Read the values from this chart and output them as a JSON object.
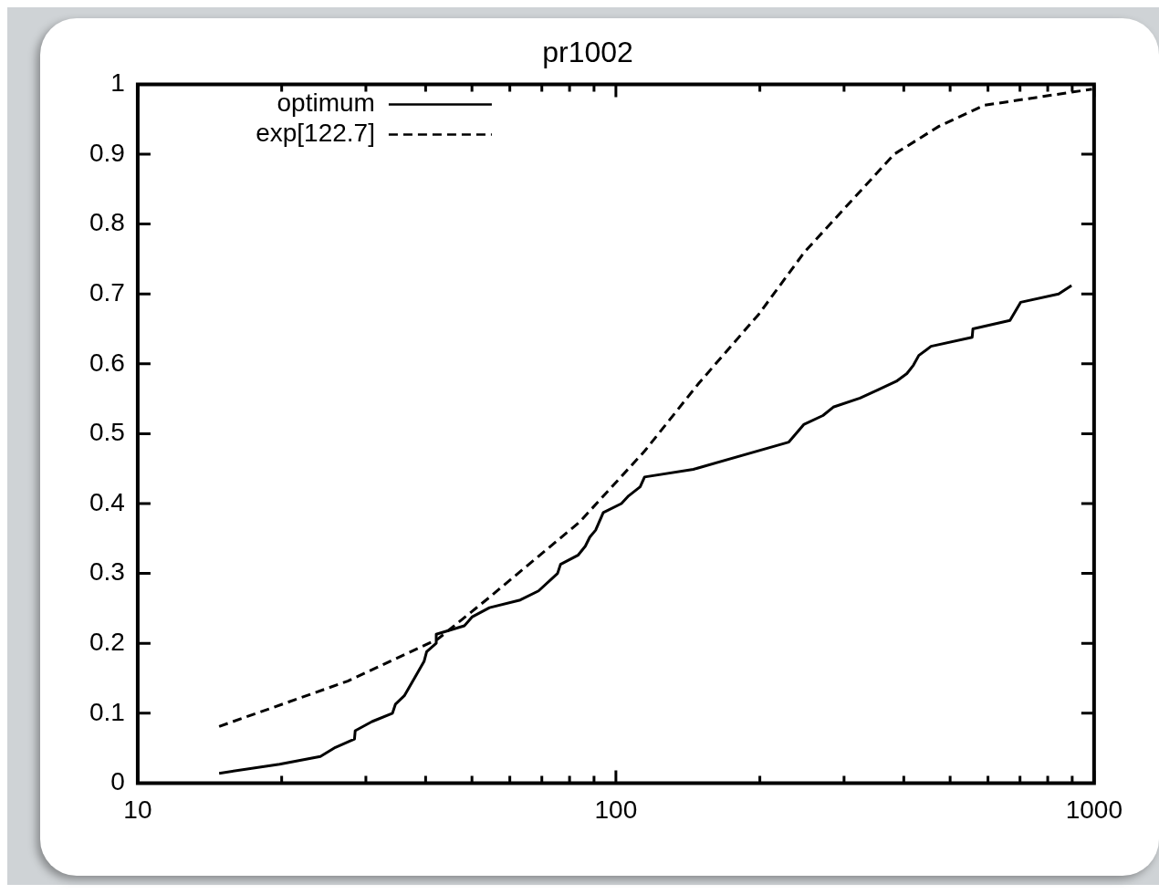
{
  "chart_data": {
    "type": "line",
    "title": "pr1002",
    "log": "x",
    "xlim": [
      10,
      1000
    ],
    "ylim": [
      0,
      1
    ],
    "xticks": [
      10,
      {
        "value": 20,
        "label": null
      },
      {
        "value": 30,
        "label": null
      },
      {
        "value": 40,
        "label": null
      },
      {
        "value": 50,
        "label": null
      },
      {
        "value": 60,
        "label": null
      },
      {
        "value": 70,
        "label": null
      },
      {
        "value": 80,
        "label": null
      },
      {
        "value": 90,
        "label": null
      },
      100,
      {
        "value": 200,
        "label": null
      },
      {
        "value": 300,
        "label": null
      },
      {
        "value": 400,
        "label": null
      },
      {
        "value": 500,
        "label": null
      },
      {
        "value": 600,
        "label": null
      },
      {
        "value": 700,
        "label": null
      },
      {
        "value": 800,
        "label": null
      },
      {
        "value": 900,
        "label": null
      },
      1000
    ],
    "yticks": [
      0,
      0.1,
      0.2,
      0.3,
      0.4,
      0.5,
      0.6,
      0.7,
      0.8,
      0.9,
      1
    ],
    "grid": false,
    "legend": "top left",
    "marker": "none",
    "series": [
      {
        "name": "optimum",
        "color": "#000000",
        "line_style": "solid",
        "x": [
          14.8,
          19.8,
          24.1,
          25.9,
          28.4,
          28.5,
          30.9,
          34.1,
          34.6,
          36.1,
          37.9,
          39.7,
          40.2,
          42.1,
          42.1,
          48.2,
          50.1,
          54.4,
          63.1,
          68.9,
          75.5,
          76.6,
          83.3,
          86.3,
          88.2,
          90.7,
          94.1,
          102.7,
          106.3,
          112.4,
          114.8,
          145.2,
          230,
          247,
          271,
          284.8,
          324,
          354,
          386,
          406,
          419,
          430,
          456,
          556,
          558,
          667,
          702,
          843,
          897
        ],
        "values": [
          0.014,
          0.027,
          0.038,
          0.051,
          0.063,
          0.075,
          0.088,
          0.1,
          0.113,
          0.125,
          0.15,
          0.174,
          0.188,
          0.2,
          0.213,
          0.225,
          0.238,
          0.251,
          0.262,
          0.275,
          0.3,
          0.313,
          0.326,
          0.339,
          0.352,
          0.362,
          0.387,
          0.4,
          0.411,
          0.424,
          0.438,
          0.449,
          0.488,
          0.513,
          0.526,
          0.538,
          0.551,
          0.563,
          0.575,
          0.586,
          0.598,
          0.612,
          0.625,
          0.638,
          0.65,
          0.662,
          0.688,
          0.7,
          0.712
        ]
      },
      {
        "name": "exp[122.7]",
        "color": "#000000",
        "line_style": "dashed",
        "x": [
          14.8,
          27.5,
          42.4,
          54.2,
          83.8,
          114.8,
          149,
          199,
          248,
          382,
          474,
          589,
          990
        ],
        "values": [
          0.081,
          0.146,
          0.206,
          0.265,
          0.373,
          0.475,
          0.572,
          0.671,
          0.76,
          0.9,
          0.94,
          0.97,
          0.993
        ]
      }
    ]
  }
}
